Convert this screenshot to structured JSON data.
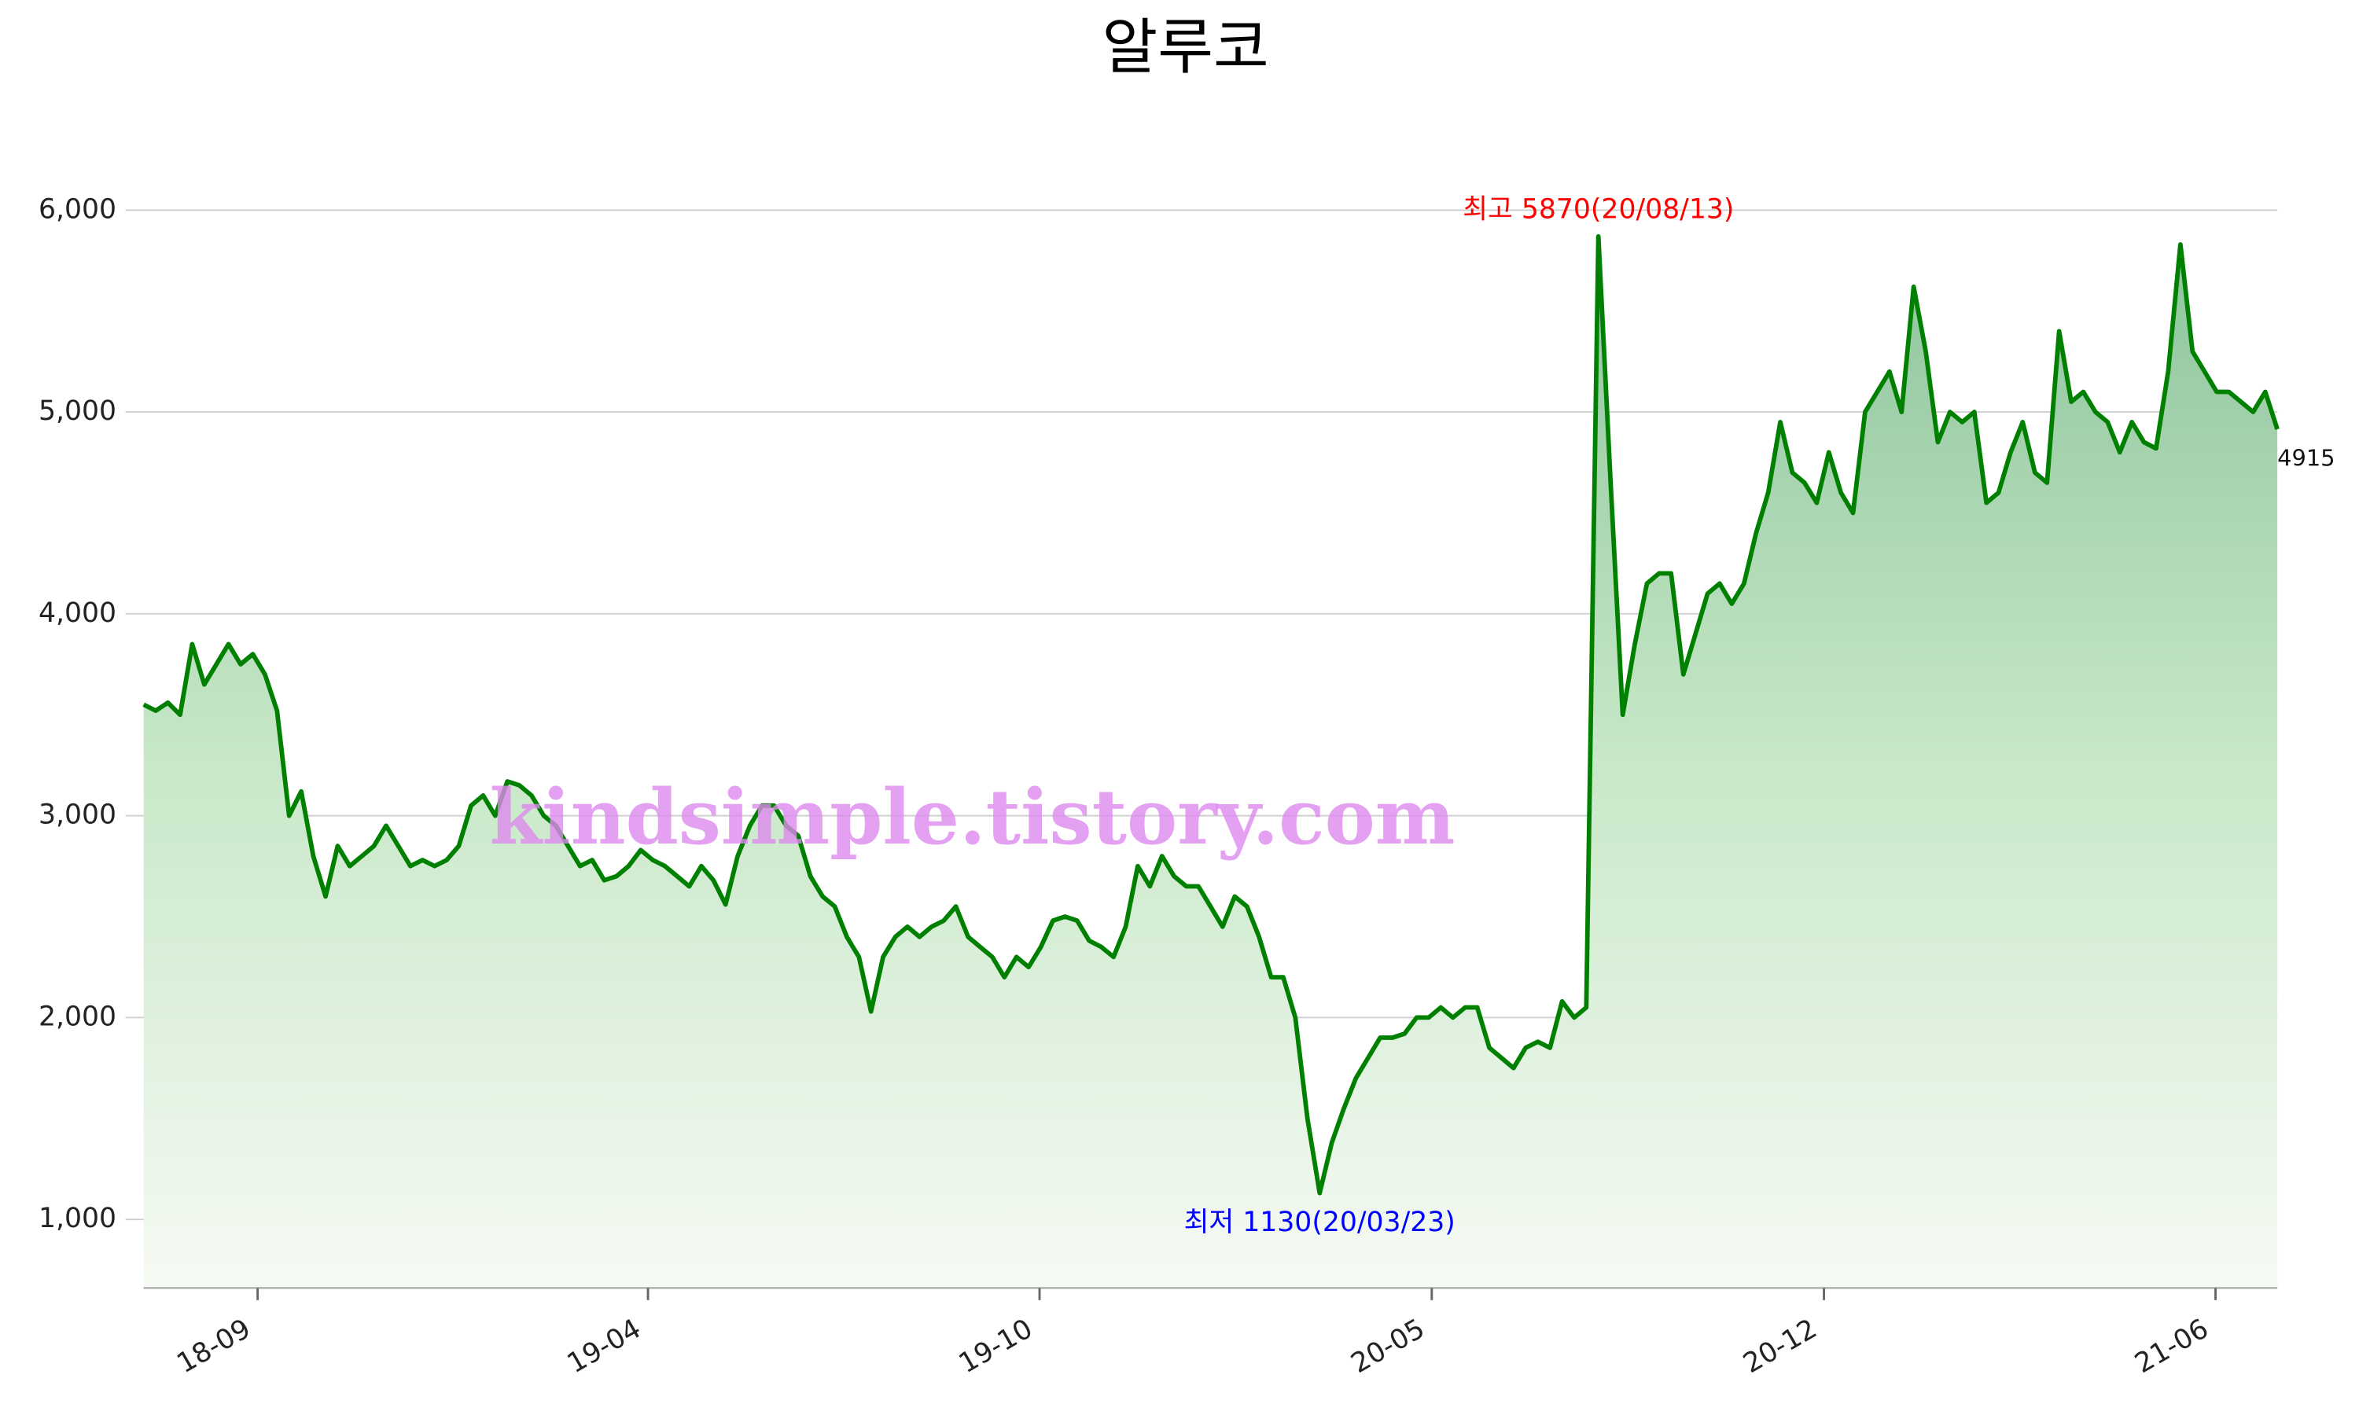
{
  "chart_data": {
    "type": "line",
    "title": "알루코",
    "values": [
      3550,
      3520,
      3560,
      3500,
      3850,
      3650,
      3750,
      3850,
      3750,
      3800,
      3700,
      3520,
      3000,
      3120,
      2800,
      2600,
      2850,
      2750,
      2800,
      2850,
      2950,
      2850,
      2750,
      2780,
      2750,
      2780,
      2850,
      3050,
      3100,
      3000,
      3170,
      3150,
      3100,
      3000,
      2950,
      2850,
      2750,
      2780,
      2680,
      2700,
      2750,
      2830,
      2780,
      2750,
      2700,
      2650,
      2750,
      2680,
      2560,
      2800,
      2950,
      3050,
      3050,
      2950,
      2900,
      2700,
      2600,
      2550,
      2400,
      2300,
      2030,
      2300,
      2400,
      2450,
      2400,
      2450,
      2480,
      2550,
      2400,
      2350,
      2300,
      2200,
      2300,
      2250,
      2350,
      2480,
      2500,
      2480,
      2380,
      2350,
      2300,
      2450,
      2750,
      2650,
      2800,
      2700,
      2650,
      2650,
      2550,
      2450,
      2600,
      2550,
      2400,
      2200,
      2200,
      2000,
      1500,
      1130,
      1380,
      1550,
      1700,
      1800,
      1900,
      1900,
      1920,
      2000,
      2000,
      2050,
      2000,
      2050,
      2050,
      1850,
      1800,
      1750,
      1850,
      1880,
      1850,
      2080,
      2000,
      2050,
      5870,
      4650,
      3500,
      3850,
      4150,
      4200,
      4200,
      3700,
      3900,
      4100,
      4150,
      4050,
      4150,
      4400,
      4600,
      4950,
      4700,
      4650,
      4550,
      4800,
      4600,
      4500,
      5000,
      5100,
      5200,
      5000,
      5620,
      5300,
      4850,
      5000,
      4950,
      5000,
      4550,
      4600,
      4800,
      4950,
      4700,
      4650,
      5400,
      5050,
      5100,
      5000,
      4950,
      4800,
      4950,
      4850,
      4820,
      5200,
      5830,
      5300,
      5200,
      5100,
      5100,
      5050,
      5000,
      5100,
      4915
    ],
    "color": "#008000",
    "ylim": [
      660,
      6000
    ],
    "yticks": [
      {
        "value": 1000,
        "label": "1,000"
      },
      {
        "value": 2000,
        "label": "2,000"
      },
      {
        "value": 3000,
        "label": "3,000"
      },
      {
        "value": 4000,
        "label": "4,000"
      },
      {
        "value": 5000,
        "label": "5,000"
      },
      {
        "value": 6000,
        "label": "6,000"
      }
    ],
    "xlim": [
      0,
      176
    ],
    "xticks": [
      {
        "value": 9.4,
        "label": "18-09"
      },
      {
        "value": 41.6,
        "label": "19-04"
      },
      {
        "value": 73.9,
        "label": "19-10"
      },
      {
        "value": 106.25,
        "label": "20-05"
      },
      {
        "value": 138.6,
        "label": "20-12"
      },
      {
        "value": 170.9,
        "label": "21-06"
      }
    ],
    "grid": true,
    "max_label": "최고 5870(20/08/13)",
    "min_label": "최저 1130(20/03/23)",
    "watermark": "kindsimple.tistory.com"
  }
}
